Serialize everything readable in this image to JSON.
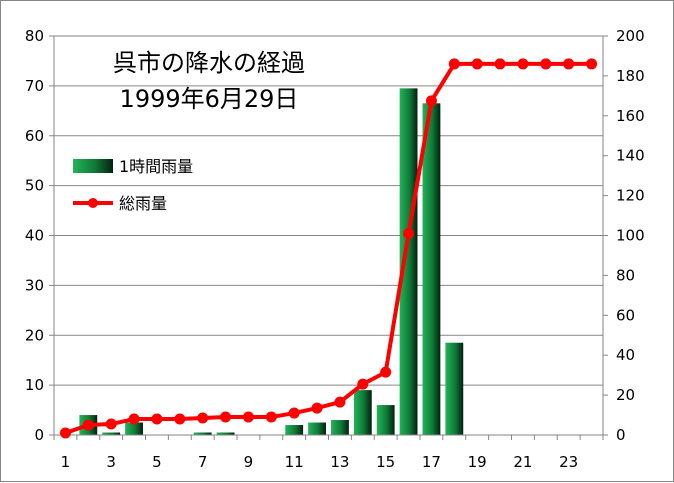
{
  "chart_data": {
    "type": "bar",
    "title": "呉市の降水の経過",
    "subtitle": "1999年6月29日",
    "x": [
      1,
      2,
      3,
      4,
      5,
      6,
      7,
      8,
      9,
      10,
      11,
      12,
      13,
      14,
      15,
      16,
      17,
      18,
      19,
      20,
      21,
      22,
      23,
      24
    ],
    "x_tick_labels": [
      "1",
      "3",
      "5",
      "7",
      "9",
      "11",
      "13",
      "15",
      "17",
      "19",
      "21",
      "23"
    ],
    "y_left_lim": [
      0,
      80
    ],
    "y_left_ticks": [
      "0",
      "10",
      "20",
      "30",
      "40",
      "50",
      "60",
      "70",
      "80"
    ],
    "y_right_lim": [
      0,
      200
    ],
    "y_right_ticks": [
      "0",
      "20",
      "40",
      "60",
      "80",
      "100",
      "120",
      "140",
      "160",
      "180",
      "200"
    ],
    "grid": true,
    "legend_position": "top-left",
    "series": [
      {
        "name": "1時間雨量",
        "type": "bar",
        "axis": "left",
        "color": "#1e9e4f",
        "values": [
          0,
          4,
          0.5,
          2.5,
          0,
          0,
          0.5,
          0.5,
          0,
          0,
          2,
          2.5,
          3,
          9,
          6,
          69.5,
          66.5,
          18.5,
          null,
          null,
          null,
          null,
          null,
          null
        ]
      },
      {
        "name": "総雨量",
        "type": "line",
        "axis": "right",
        "color": "#ff0000",
        "values": [
          1,
          5,
          5.5,
          8,
          8,
          8,
          8.5,
          9,
          9,
          9,
          11,
          13.5,
          16.5,
          25.5,
          31.5,
          101,
          167.5,
          186,
          186,
          186,
          186,
          186,
          186,
          186
        ]
      }
    ]
  }
}
